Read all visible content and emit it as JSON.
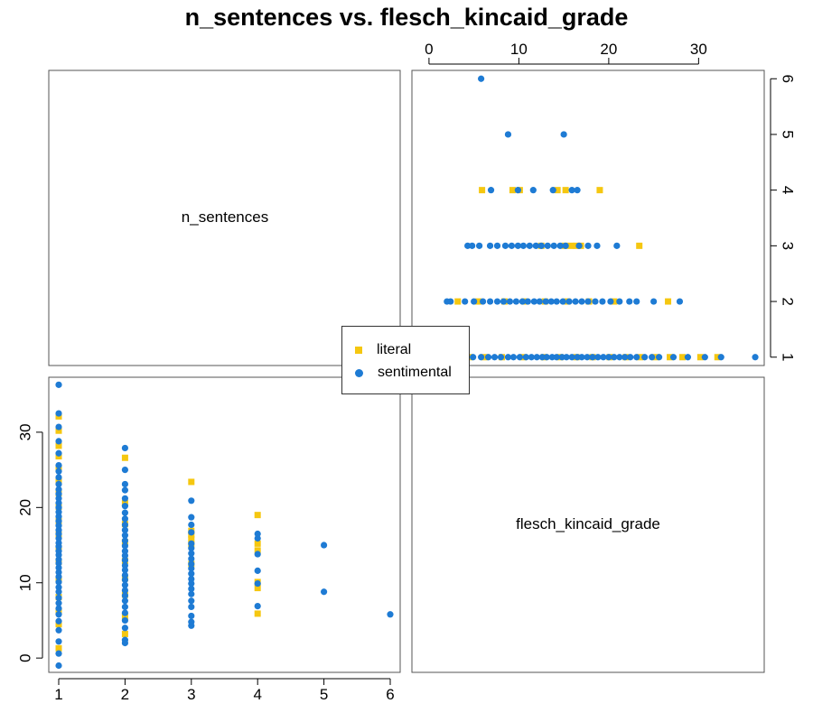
{
  "chart_data": {
    "type": "scatter",
    "title": "n_sentences vs. flesch_kincaid_grade",
    "variables": [
      "n_sentences",
      "flesch_kincaid_grade"
    ],
    "legend": {
      "placement": "center",
      "entries": [
        {
          "name": "literal",
          "color": "#F5C710",
          "marker": "square"
        },
        {
          "name": "sentimental",
          "color": "#1E7BD4",
          "marker": "circle"
        }
      ]
    },
    "axes": {
      "n_sentences": {
        "range": [
          0.85,
          6.15
        ],
        "ticks": [
          1,
          2,
          3,
          4,
          5,
          6
        ],
        "tick_labels": [
          "1",
          "2",
          "3",
          "4",
          "5",
          "6"
        ]
      },
      "flesch_kincaid_grade": {
        "range": [
          -1.9,
          37.3
        ],
        "ticks": [
          0,
          10,
          20,
          30
        ],
        "tick_labels": [
          "0",
          "10",
          "20",
          "30"
        ]
      }
    },
    "grid": false,
    "series": [
      {
        "name": "literal",
        "points": [
          [
            1,
            1.3
          ],
          [
            1,
            4.5
          ],
          [
            1,
            6.2
          ],
          [
            1,
            8.1
          ],
          [
            1,
            10.5
          ],
          [
            1,
            12.8
          ],
          [
            1,
            14.6
          ],
          [
            1,
            16.4
          ],
          [
            1,
            18.2
          ],
          [
            1,
            20.1
          ],
          [
            1,
            21.9
          ],
          [
            1,
            23.5
          ],
          [
            1,
            25.2
          ],
          [
            1,
            26.8
          ],
          [
            1,
            28.2
          ],
          [
            1,
            30.2
          ],
          [
            1,
            32.1
          ],
          [
            2,
            3.2
          ],
          [
            2,
            5.5
          ],
          [
            2,
            8.4
          ],
          [
            2,
            10.6
          ],
          [
            2,
            12.9
          ],
          [
            2,
            15.4
          ],
          [
            2,
            17.8
          ],
          [
            2,
            20.6
          ],
          [
            2,
            26.6
          ],
          [
            3,
            12.5
          ],
          [
            3,
            15.1
          ],
          [
            3,
            15.8
          ],
          [
            3,
            16.4
          ],
          [
            3,
            16.9
          ],
          [
            3,
            23.4
          ],
          [
            4,
            5.9
          ],
          [
            4,
            9.3
          ],
          [
            4,
            10.1
          ],
          [
            4,
            14.3
          ],
          [
            4,
            15.2
          ],
          [
            4,
            19.0
          ]
        ]
      },
      {
        "name": "sentimental",
        "points": [
          [
            1,
            -1.0
          ],
          [
            1,
            0.6
          ],
          [
            1,
            2.2
          ],
          [
            1,
            3.7
          ],
          [
            1,
            4.9
          ],
          [
            1,
            5.8
          ],
          [
            1,
            6.6
          ],
          [
            1,
            7.3
          ],
          [
            1,
            8.0
          ],
          [
            1,
            8.8
          ],
          [
            1,
            9.4
          ],
          [
            1,
            10.1
          ],
          [
            1,
            10.8
          ],
          [
            1,
            11.4
          ],
          [
            1,
            12.0
          ],
          [
            1,
            12.6
          ],
          [
            1,
            13.1
          ],
          [
            1,
            13.7
          ],
          [
            1,
            14.2
          ],
          [
            1,
            14.8
          ],
          [
            1,
            15.3
          ],
          [
            1,
            15.9
          ],
          [
            1,
            16.5
          ],
          [
            1,
            17.0
          ],
          [
            1,
            17.6
          ],
          [
            1,
            18.2
          ],
          [
            1,
            18.8
          ],
          [
            1,
            19.4
          ],
          [
            1,
            20.0
          ],
          [
            1,
            20.6
          ],
          [
            1,
            21.2
          ],
          [
            1,
            21.8
          ],
          [
            1,
            22.4
          ],
          [
            1,
            23.1
          ],
          [
            1,
            24.0
          ],
          [
            1,
            24.8
          ],
          [
            1,
            25.6
          ],
          [
            1,
            27.2
          ],
          [
            1,
            28.8
          ],
          [
            1,
            30.7
          ],
          [
            1,
            32.5
          ],
          [
            1,
            36.3
          ],
          [
            2,
            2.0
          ],
          [
            2,
            2.4
          ],
          [
            2,
            4.0
          ],
          [
            2,
            5.0
          ],
          [
            2,
            6.0
          ],
          [
            2,
            6.8
          ],
          [
            2,
            7.6
          ],
          [
            2,
            8.3
          ],
          [
            2,
            9.0
          ],
          [
            2,
            9.7
          ],
          [
            2,
            10.4
          ],
          [
            2,
            11.0
          ],
          [
            2,
            11.7
          ],
          [
            2,
            12.3
          ],
          [
            2,
            13.0
          ],
          [
            2,
            13.6
          ],
          [
            2,
            14.2
          ],
          [
            2,
            14.9
          ],
          [
            2,
            15.6
          ],
          [
            2,
            16.3
          ],
          [
            2,
            17.0
          ],
          [
            2,
            17.7
          ],
          [
            2,
            18.5
          ],
          [
            2,
            19.3
          ],
          [
            2,
            20.2
          ],
          [
            2,
            21.2
          ],
          [
            2,
            22.3
          ],
          [
            2,
            23.1
          ],
          [
            2,
            25.0
          ],
          [
            2,
            27.9
          ],
          [
            3,
            4.3
          ],
          [
            3,
            4.8
          ],
          [
            3,
            5.6
          ],
          [
            3,
            6.8
          ],
          [
            3,
            7.6
          ],
          [
            3,
            8.5
          ],
          [
            3,
            9.2
          ],
          [
            3,
            9.9
          ],
          [
            3,
            10.5
          ],
          [
            3,
            11.2
          ],
          [
            3,
            11.9
          ],
          [
            3,
            12.5
          ],
          [
            3,
            13.2
          ],
          [
            3,
            13.9
          ],
          [
            3,
            14.6
          ],
          [
            3,
            15.2
          ],
          [
            3,
            16.7
          ],
          [
            3,
            17.7
          ],
          [
            3,
            18.7
          ],
          [
            3,
            20.9
          ],
          [
            4,
            6.9
          ],
          [
            4,
            9.9
          ],
          [
            4,
            11.6
          ],
          [
            4,
            13.8
          ],
          [
            4,
            15.9
          ],
          [
            4,
            16.5
          ],
          [
            5,
            8.8
          ],
          [
            5,
            15.0
          ],
          [
            6,
            5.8
          ]
        ]
      }
    ],
    "panels": {
      "upper_right": {
        "x": "flesch_kincaid_grade",
        "y": "n_sentences",
        "x_axis_side": "top",
        "y_axis_side": "right"
      },
      "lower_left": {
        "x": "n_sentences",
        "y": "flesch_kincaid_grade",
        "x_axis_side": "bottom",
        "y_axis_side": "left"
      }
    }
  }
}
